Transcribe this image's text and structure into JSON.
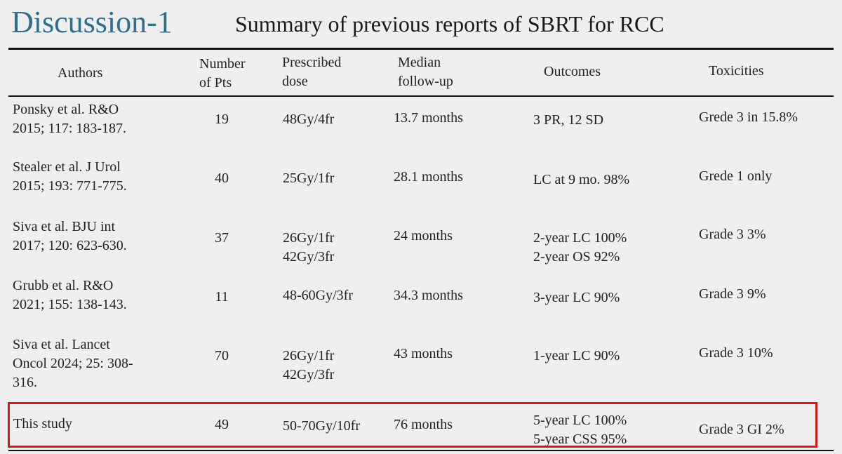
{
  "title": "Discussion-1",
  "subtitle": "Summary of previous reports of SBRT for RCC",
  "table": {
    "headers": {
      "authors": [
        "Authors"
      ],
      "pts": [
        "Number",
        "of Pts"
      ],
      "dose": [
        "Prescribed",
        "dose"
      ],
      "followup": [
        "Median",
        "follow-up"
      ],
      "outcomes": [
        "Outcomes"
      ],
      "toxicities": [
        "Toxicities"
      ]
    },
    "rows": [
      {
        "authors": [
          "Ponsky et al. R&O",
          "2015; 117: 183-187."
        ],
        "pts": "19",
        "dose": [
          "48Gy/4fr"
        ],
        "followup": "13.7 months",
        "outcomes": [
          "3 PR, 12 SD"
        ],
        "toxicities": "Grede 3 in 15.8%"
      },
      {
        "authors": [
          "Stealer et al. J Urol",
          "2015; 193: 771-775."
        ],
        "pts": "40",
        "dose": [
          "25Gy/1fr"
        ],
        "followup": "28.1 months",
        "outcomes": [
          "LC at 9 mo. 98%"
        ],
        "toxicities": "Grede 1 only"
      },
      {
        "authors": [
          "Siva et al. BJU int",
          "2017; 120: 623-630."
        ],
        "pts": "37",
        "dose": [
          "26Gy/1fr",
          "42Gy/3fr"
        ],
        "followup": "24 months",
        "outcomes": [
          "2-year LC 100%",
          "2-year OS 92%"
        ],
        "toxicities": "Grade 3  3%"
      },
      {
        "authors": [
          "Grubb et al. R&O",
          "2021; 155: 138-143."
        ],
        "pts": "11",
        "dose": [
          "48-60Gy/3fr"
        ],
        "followup": "34.3 months",
        "outcomes": [
          "3-year LC 90%"
        ],
        "toxicities": "Grade 3  9%"
      },
      {
        "authors": [
          "Siva et al. Lancet",
          "Oncol 2024; 25: 308-",
          "316."
        ],
        "pts": "70",
        "dose": [
          "26Gy/1fr",
          "42Gy/3fr"
        ],
        "followup": "43 months",
        "outcomes": [
          "1-year LC 90%"
        ],
        "toxicities": "Grade 3  10%"
      },
      {
        "authors": [
          "This study"
        ],
        "pts": "49",
        "dose": [
          "50-70Gy/10fr"
        ],
        "followup": "76 months",
        "outcomes": [
          "5-year LC 100%",
          "5-year CSS 95%"
        ],
        "toxicities": "Grade 3 GI  2%"
      }
    ]
  },
  "highlight_color": "#d11b1b",
  "title_color": "#2e6e8e"
}
